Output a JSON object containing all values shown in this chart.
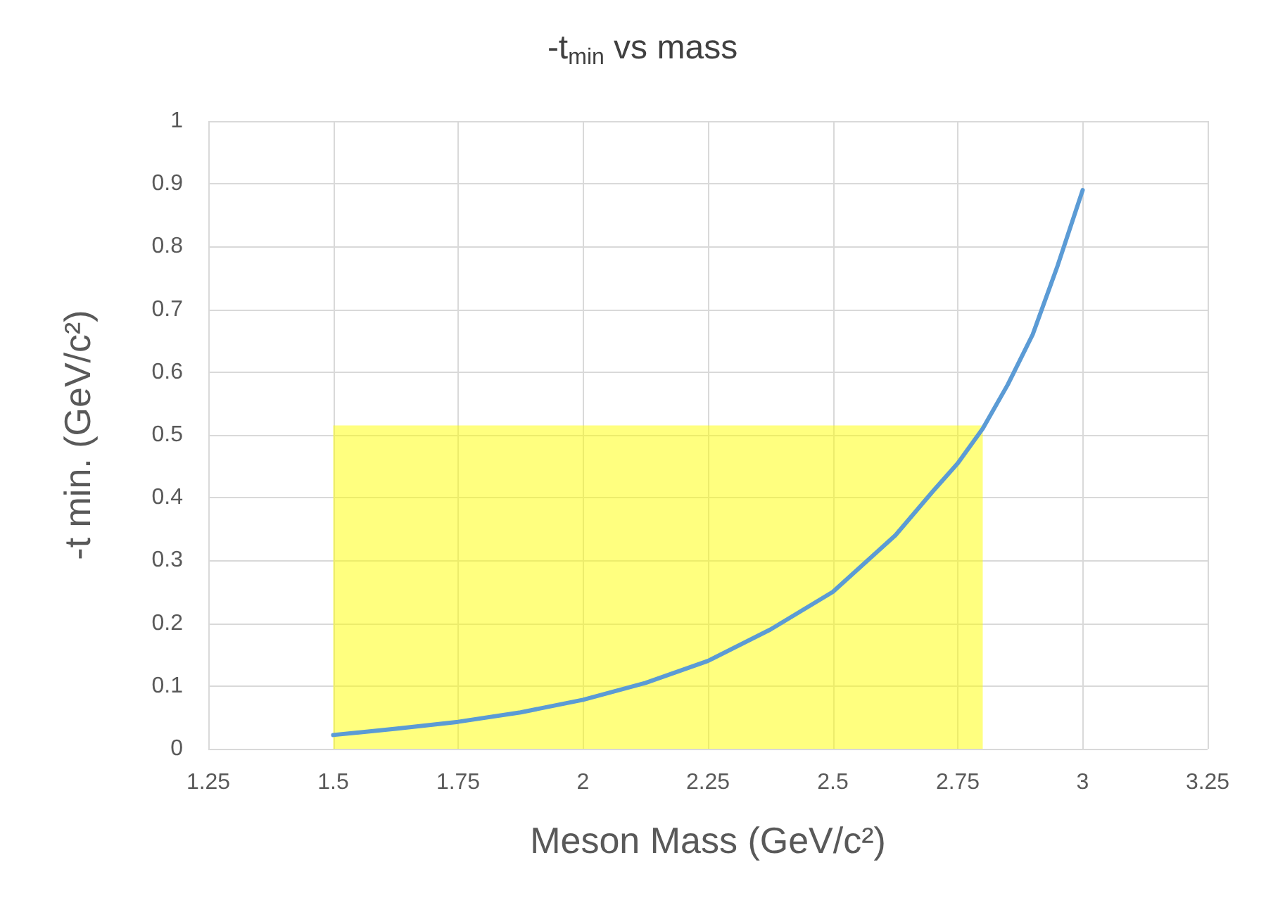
{
  "chart_data": {
    "type": "line",
    "title": "-t$_{min}$ vs mass",
    "xlabel": "Meson Mass (GeV/c²)",
    "ylabel": "-t min. (GeV/c²)",
    "x": [
      1.5,
      1.625,
      1.75,
      1.875,
      2,
      2.125,
      2.25,
      2.375,
      2.5,
      2.625,
      2.7,
      2.75,
      2.8,
      2.85,
      2.9,
      2.95,
      3
    ],
    "series": [
      {
        "color": "#5b9bd5",
        "values": [
          0.022,
          0.032,
          0.043,
          0.058,
          0.078,
          0.105,
          0.14,
          0.19,
          0.25,
          0.34,
          0.41,
          0.455,
          0.51,
          0.58,
          0.66,
          0.77,
          0.89
        ]
      },
      {
        "type": "area",
        "color": "#ffff00",
        "x": [
          1.5,
          2.8
        ],
        "values": [
          0.515,
          0.515
        ]
      }
    ],
    "xlim": [
      1.25,
      3.25
    ],
    "xticks": [
      1.25,
      1.5,
      1.75,
      2,
      2.25,
      2.5,
      2.75,
      3,
      3.25
    ],
    "ylim": [
      0,
      1
    ],
    "yticks": [
      0,
      0.1,
      0.2,
      0.3,
      0.4,
      0.5,
      0.6,
      0.7,
      0.8,
      0.9,
      1
    ],
    "grid": true,
    "marker": "none",
    "line_style": "solid"
  }
}
